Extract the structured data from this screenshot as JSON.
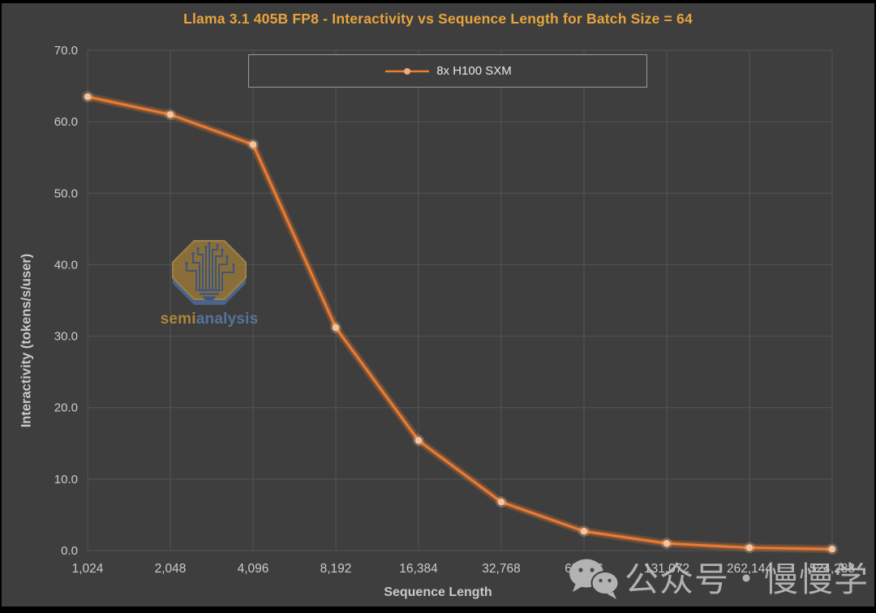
{
  "chart_data": {
    "type": "line",
    "title": "Llama 3.1 405B FP8 - Interactivity vs Sequence Length for Batch Size = 64",
    "xlabel": "Sequence Length",
    "ylabel": "Interactivity (tokens/s/user)",
    "categories": [
      "1,024",
      "2,048",
      "4,096",
      "8,192",
      "16,384",
      "32,768",
      "65,536",
      "131,072",
      "262,144",
      "524,288"
    ],
    "series": [
      {
        "name": "8x H100 SXM",
        "values": [
          63.5,
          61.0,
          56.8,
          31.2,
          15.4,
          6.8,
          2.7,
          1.0,
          0.4,
          0.2
        ]
      }
    ],
    "ylim": [
      0,
      70
    ],
    "yticks": [
      0,
      10,
      20,
      30,
      40,
      50,
      60,
      70
    ],
    "ytick_labels": [
      "0.0",
      "10.0",
      "20.0",
      "30.0",
      "40.0",
      "50.0",
      "60.0",
      "70.0"
    ],
    "grid": true,
    "legend_position": "top-center"
  },
  "legend": {
    "label": "8x H100 SXM"
  },
  "watermarks": {
    "logo": {
      "semi": "semi",
      "analysis": "analysis"
    },
    "wechat": {
      "text": "公众号・慢慢学 AIGC"
    }
  },
  "colors": {
    "background": "#3E3E3E",
    "frame": "#000000",
    "title": "#E8A43C",
    "line": "#ED7D31",
    "marker": "#F6C49C",
    "gridline": "#545454",
    "axis_text": "#CCCCCC"
  }
}
